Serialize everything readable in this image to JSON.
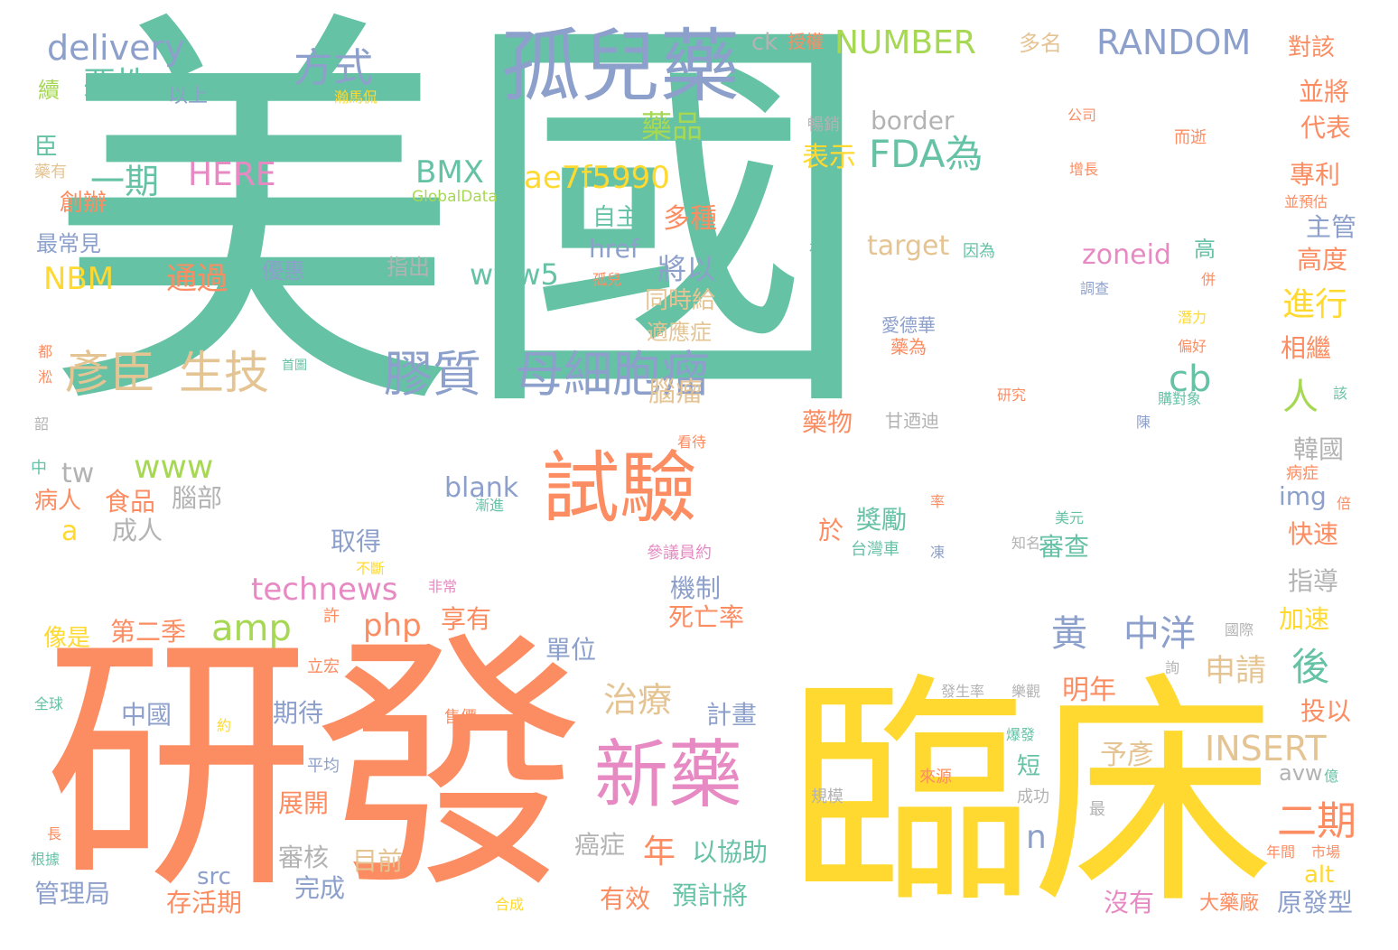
{
  "palette": {
    "teal": "#66c2a5",
    "orange": "#fc8d62",
    "blue": "#8da0cb",
    "pink": "#e78ac3",
    "green": "#a6d854",
    "yellow": "#ffd92f",
    "tan": "#e5c494",
    "gray": "#b3b3b3"
  },
  "words": [
    "美國",
    "研發",
    "臨床",
    "孤兒藥",
    "試驗",
    "新藥",
    "膠質",
    "母細胞瘤",
    "彥臣",
    "生技",
    "delivery",
    "惡性",
    "方式",
    "續",
    "以上",
    "瀚馬侃",
    "臣",
    "藥有",
    "一期",
    "HERE",
    "BMX",
    "ae7f5990",
    "創辦",
    "GlobalData",
    "最常見",
    "NBM",
    "通過",
    "優惠",
    "指出",
    "自主",
    "多種",
    "href",
    "www5",
    "孤兒",
    "將以",
    "同時給",
    "適應症",
    "都",
    "首圖",
    "淞",
    "腦瘤",
    "www",
    "tw",
    "韶",
    "中",
    "病人",
    "食品",
    "腦部",
    "成人",
    "a",
    "blank",
    "取得",
    "amp",
    "technews",
    "非常",
    "php",
    "享有",
    "許",
    "第二季",
    "像是",
    "立宏",
    "中國",
    "期待",
    "全球",
    "約",
    "售價",
    "平均",
    "展開",
    "長",
    "審核",
    "目前",
    "根據",
    "src",
    "管理局",
    "存活期",
    "完成",
    "合成",
    "有效",
    "預計將",
    "以協助",
    "年",
    "治療",
    "癌症",
    "計畫",
    "單位",
    "機制",
    "死亡率",
    "不斷",
    "參議員約",
    "漸進",
    "ck",
    "授權",
    "NUMBER",
    "多名",
    "RANDOM",
    "對該",
    "藥品",
    "並將",
    "公司",
    "暢銷",
    "border",
    "表示",
    "FDA為",
    "而逝",
    "增長",
    "代表",
    "專利",
    "並預估",
    "主管",
    "補充",
    "target",
    "因為",
    "zoneid",
    "高",
    "併",
    "高度",
    "調查",
    "潛力",
    "偏好",
    "進行",
    "相繼",
    "愛德華",
    "藥為",
    "研究",
    "該",
    "購對象",
    "甘迺迪",
    "看待",
    "陳",
    "人",
    "藥物",
    "韓國",
    "病症",
    "img",
    "倍",
    "率",
    "美元",
    "cb",
    "於",
    "獎勵",
    "知名",
    "快速",
    "台灣車",
    "凍",
    "審查",
    "指導",
    "加速",
    "黃",
    "中洋",
    "申請",
    "後",
    "國際",
    "詢",
    "發生率",
    "樂觀",
    "明年",
    "投以",
    "爆發",
    "INSERT",
    "予彥",
    "短",
    "avw",
    "億",
    "來源",
    "成功",
    "規模",
    "最",
    "n",
    "二期",
    "年間",
    "市場",
    "alt",
    "沒有",
    "大藥廠",
    "原發型"
  ]
}
